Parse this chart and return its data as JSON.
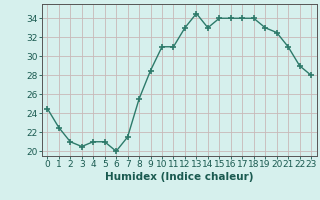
{
  "x": [
    0,
    1,
    2,
    3,
    4,
    5,
    6,
    7,
    8,
    9,
    10,
    11,
    12,
    13,
    14,
    15,
    16,
    17,
    18,
    19,
    20,
    21,
    22,
    23
  ],
  "y": [
    24.5,
    22.5,
    21.0,
    20.5,
    21.0,
    21.0,
    20.0,
    21.5,
    25.5,
    28.5,
    31.0,
    31.0,
    33.0,
    34.5,
    33.0,
    34.0,
    34.0,
    34.0,
    34.0,
    33.0,
    32.5,
    31.0,
    29.0,
    28.0
  ],
  "line_color": "#2d7a6a",
  "marker": "+",
  "marker_size": 4,
  "bg_color": "#d6f0ed",
  "grid_major_color": "#c8b8b8",
  "grid_minor_color": "#ddd0d0",
  "xlabel": "Humidex (Indice chaleur)",
  "xlim": [
    -0.5,
    23.5
  ],
  "ylim": [
    19.5,
    35.5
  ],
  "yticks": [
    20,
    22,
    24,
    26,
    28,
    30,
    32,
    34
  ],
  "xticks": [
    0,
    1,
    2,
    3,
    4,
    5,
    6,
    7,
    8,
    9,
    10,
    11,
    12,
    13,
    14,
    15,
    16,
    17,
    18,
    19,
    20,
    21,
    22,
    23
  ],
  "font_color": "#1a5a50",
  "spine_color": "#555555",
  "fontsize": 6.5,
  "xlabel_fontsize": 7.5,
  "linewidth": 1.0,
  "marker_linewidth": 1.2
}
